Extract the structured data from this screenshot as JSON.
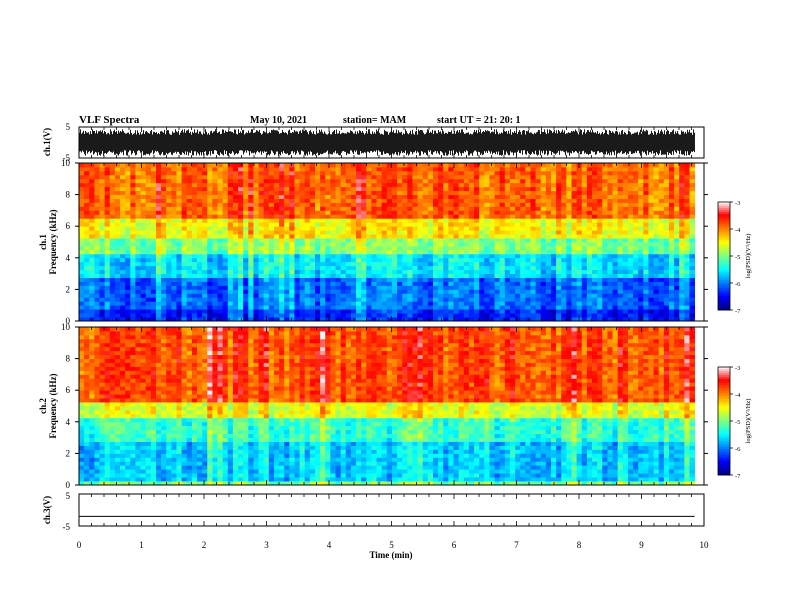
{
  "header": {
    "title": "VLF Spectra",
    "date": "May 10, 2021",
    "station": "station= MAM",
    "start": "start  UT  =   21: 20: 1"
  },
  "colors": {
    "waveform": "#000000",
    "colormap": [
      "#00007f",
      "#0000ff",
      "#007fff",
      "#00ffff",
      "#7fff7f",
      "#ffff00",
      "#ff7f00",
      "#ff0000",
      "#ffffff"
    ]
  },
  "chart_data": [
    {
      "type": "line",
      "id": "ch1-waveform",
      "ylabel": "ch.1(V)",
      "ylim": [
        -5,
        5
      ],
      "yticks": [
        "5",
        "-5"
      ],
      "xlim": [
        0,
        10
      ],
      "description_type": "dense oscillating voltage trace filling roughly -4 to +4 V"
    },
    {
      "type": "heatmap",
      "id": "ch1-spectrogram",
      "ylabel": "ch.1\nFrequency (kHz)",
      "ylabel_top": "ch.1",
      "ylabel_bottom": "Frequency (kHz)",
      "ylim": [
        0,
        10
      ],
      "yticks": [
        "0",
        "2",
        "4",
        "6",
        "8",
        "10"
      ],
      "xlim": [
        0,
        10
      ],
      "data_end_min": 9.85,
      "bands": [
        {
          "fmin": 0.0,
          "fmax": 0.7,
          "log_psd": -6.4
        },
        {
          "fmin": 0.7,
          "fmax": 2.8,
          "log_psd": -6.1
        },
        {
          "fmin": 2.8,
          "fmax": 4.2,
          "log_psd": -5.6
        },
        {
          "fmin": 4.2,
          "fmax": 5.2,
          "log_psd": -5.0
        },
        {
          "fmin": 5.2,
          "fmax": 6.5,
          "log_psd": -4.5
        },
        {
          "fmin": 6.5,
          "fmax": 10.0,
          "log_psd": -3.9
        }
      ],
      "colorbar": {
        "label": "log(PSD)(V²/Hz)",
        "range": [
          -7,
          -3
        ],
        "ticks": [
          "-3",
          "-4",
          "-5",
          "-6",
          "-7"
        ]
      }
    },
    {
      "type": "heatmap",
      "id": "ch2-spectrogram",
      "ylabel_top": "ch.2",
      "ylabel_bottom": "Frequency (kHz)",
      "ylim": [
        0,
        10
      ],
      "yticks": [
        "0",
        "2",
        "4",
        "6",
        "8",
        "10"
      ],
      "xlim": [
        0,
        10
      ],
      "data_end_min": 9.85,
      "bands": [
        {
          "fmin": 0.0,
          "fmax": 0.3,
          "log_psd": -5.0
        },
        {
          "fmin": 0.3,
          "fmax": 2.8,
          "log_psd": -5.7
        },
        {
          "fmin": 2.8,
          "fmax": 4.2,
          "log_psd": -5.3
        },
        {
          "fmin": 4.2,
          "fmax": 5.2,
          "log_psd": -4.6
        },
        {
          "fmin": 5.2,
          "fmax": 10.0,
          "log_psd": -3.8
        }
      ],
      "colorbar": {
        "label": "log(PSD)(V²/Hz)",
        "range": [
          -7,
          -3
        ],
        "ticks": [
          "-3",
          "-4",
          "-5",
          "-6",
          "-7"
        ]
      }
    },
    {
      "type": "line",
      "id": "ch3-waveform",
      "ylabel": "ch.3(V)",
      "ylim": [
        -5,
        5
      ],
      "yticks": [
        "5",
        "-5"
      ],
      "xlim": [
        0,
        10
      ],
      "values_constant": -2.0
    }
  ],
  "xaxis": {
    "label": "Time  (min)",
    "ticks": [
      "0",
      "1",
      "2",
      "3",
      "4",
      "5",
      "6",
      "7",
      "8",
      "9",
      "10"
    ]
  }
}
